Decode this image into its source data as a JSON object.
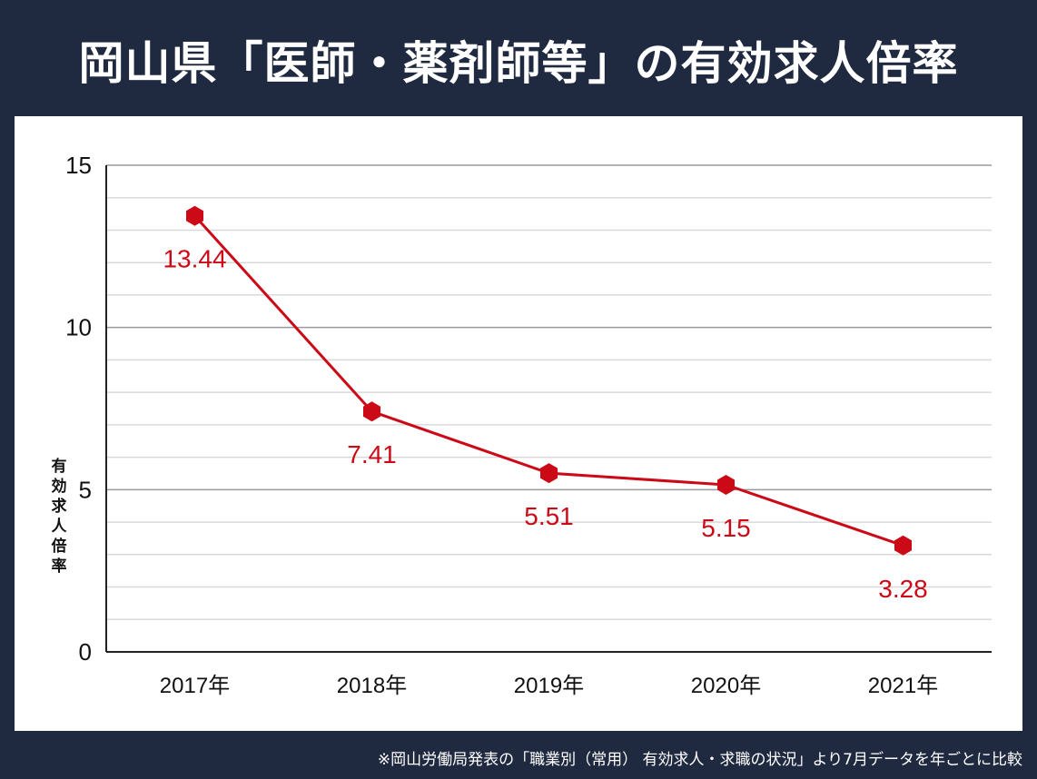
{
  "title": "岡山県「医師・薬剤師等」の有効求人倍率",
  "footnote": "※岡山労働局発表の「職業別（常用） 有効求人・求職の状況」より7月データを年ごとに比較",
  "chart_data": {
    "type": "line",
    "title": "",
    "xlabel": "",
    "ylabel": "有効求人倍率",
    "categories": [
      "2017年",
      "2018年",
      "2019年",
      "2020年",
      "2021年"
    ],
    "values": [
      13.44,
      7.41,
      5.51,
      5.15,
      3.28
    ],
    "data_labels": [
      "13.44",
      "7.41",
      "5.51",
      "5.15",
      "3.28"
    ],
    "ylim": [
      0,
      15
    ],
    "yticks": [
      0,
      5,
      10,
      15
    ],
    "minor_grid_step": 1,
    "grid": true,
    "marker": "hexagon",
    "colors": {
      "line": "#cc0a17",
      "label": "#cc0a17",
      "background": "#1f2a40"
    }
  }
}
